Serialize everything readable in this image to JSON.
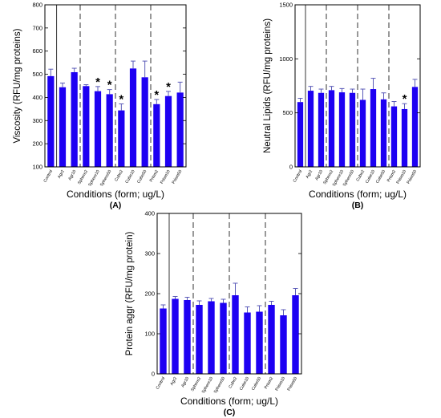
{
  "chart_data": [
    {
      "type": "bar",
      "panel_label": "(A)",
      "ylabel": "Viscosity (RFU/mg proteins)",
      "xlabel": "Conditions (form; ug/L)",
      "ylim": [
        100,
        800
      ],
      "yticks": [
        100,
        200,
        300,
        400,
        500,
        600,
        700,
        800
      ],
      "categories": [
        "Control",
        "Agr2",
        "Agr10",
        "Sphere2",
        "Sphere10",
        "Sphere50",
        "Cube2",
        "Cube10",
        "Cube50",
        "Prism2",
        "Prism10",
        "Prism50"
      ],
      "values": [
        492,
        444,
        509,
        449,
        427,
        414,
        344,
        525,
        487,
        371,
        406,
        421
      ],
      "errors": [
        30,
        18,
        17,
        6,
        20,
        20,
        28,
        32,
        70,
        20,
        20,
        45
      ],
      "significant": [
        false,
        false,
        false,
        false,
        true,
        true,
        true,
        false,
        false,
        true,
        true,
        false
      ],
      "star_symbol": "*",
      "solid_lines_after": [
        0
      ],
      "dashed_lines_after": [
        2,
        5,
        8
      ],
      "bar_color": "#1d00f2"
    },
    {
      "type": "bar",
      "panel_label": "(B)",
      "ylabel": "Neutral Lipids (RFU/mg proteins)",
      "xlabel": "Conditions (form; ug/L)",
      "ylim": [
        0,
        1500
      ],
      "yticks": [
        0,
        500,
        1000,
        1500
      ],
      "categories": [
        "Control",
        "Agr2",
        "Agr10",
        "Sphere2",
        "Sphere10",
        "Sphere50",
        "Cube2",
        "Cube10",
        "Cube50",
        "Prism2",
        "Prism10",
        "Prism50"
      ],
      "values": [
        600,
        705,
        685,
        710,
        690,
        685,
        620,
        720,
        625,
        560,
        535,
        740
      ],
      "errors": [
        35,
        40,
        35,
        35,
        35,
        35,
        100,
        100,
        60,
        45,
        50,
        70
      ],
      "significant": [
        false,
        false,
        false,
        false,
        false,
        false,
        false,
        false,
        false,
        false,
        true,
        false
      ],
      "star_symbol": "*",
      "solid_lines_after": [
        0
      ],
      "dashed_lines_after": [
        2,
        5,
        8
      ],
      "bar_color": "#1d00f2"
    },
    {
      "type": "bar",
      "panel_label": "(C)",
      "ylabel": "Protein aggr (RFU/mg protein)",
      "xlabel": "Conditions (form; ug/L)",
      "ylim": [
        0,
        400
      ],
      "yticks": [
        0,
        100,
        200,
        300,
        400
      ],
      "categories": [
        "Control",
        "Agr2",
        "Agr10",
        "Sphere2",
        "Sphere10",
        "Sphere50",
        "Cube2",
        "Cube10",
        "Cube50",
        "Prism2",
        "Prism10",
        "Prism50"
      ],
      "values": [
        163,
        187,
        184,
        172,
        181,
        177,
        196,
        153,
        155,
        172,
        146,
        196
      ],
      "errors": [
        9,
        6,
        7,
        10,
        7,
        9,
        30,
        14,
        15,
        9,
        14,
        17
      ],
      "significant": [
        false,
        false,
        false,
        false,
        false,
        false,
        false,
        false,
        false,
        false,
        false,
        false
      ],
      "star_symbol": "*",
      "solid_lines_after": [
        0
      ],
      "dashed_lines_after": [
        2,
        5,
        8
      ],
      "bar_color": "#1d00f2"
    }
  ]
}
